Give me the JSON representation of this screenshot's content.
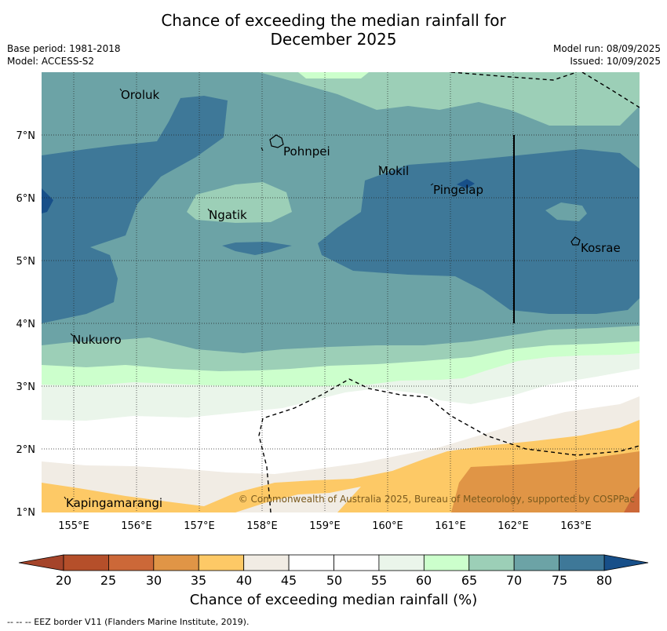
{
  "header": {
    "title_line1": "Chance of exceeding the median rainfall for",
    "title_line2": "December 2025",
    "base_period": "Base period: 1981-2018",
    "model": "Model: ACCESS-S2",
    "model_run": "Model run: 08/09/2025",
    "issued": "Issued: 10/09/2025"
  },
  "map": {
    "lon_ticks": [
      "155°E",
      "156°E",
      "157°E",
      "158°E",
      "159°E",
      "160°E",
      "161°E",
      "162°E",
      "163°E"
    ],
    "lat_ticks": [
      "7°N",
      "6°N",
      "5°N",
      "4°N",
      "3°N",
      "2°N",
      "1°N"
    ],
    "places": [
      "Oroluk",
      "Pohnpei",
      "Mokil",
      "Pingelap",
      "Ngatik",
      "Kosrae",
      "Nukuoro",
      "Kapingamarangi"
    ],
    "copyright": "© Commonwealth of Australia 2025, Bureau of Meteorology, supported by COSPPac"
  },
  "colorbar": {
    "ticks": [
      "20",
      "25",
      "30",
      "35",
      "40",
      "45",
      "50",
      "55",
      "60",
      "65",
      "70",
      "75",
      "80"
    ],
    "colors": [
      "#b54f2a",
      "#cc6838",
      "#e09546",
      "#fdc966",
      "#f1ece4",
      "#ffffff",
      "#ffffff",
      "#eaf5ea",
      "#ccffcc",
      "#9ccfb7",
      "#6ca3a6",
      "#3e7898"
    ],
    "low_color": "#a5442a",
    "high_color": "#174f89",
    "label": "Chance of exceeding median rainfall (%)"
  },
  "footer": {
    "legend_text": "--  --  -- EEZ border V11 (Flanders Marine Institute, 2019)."
  }
}
